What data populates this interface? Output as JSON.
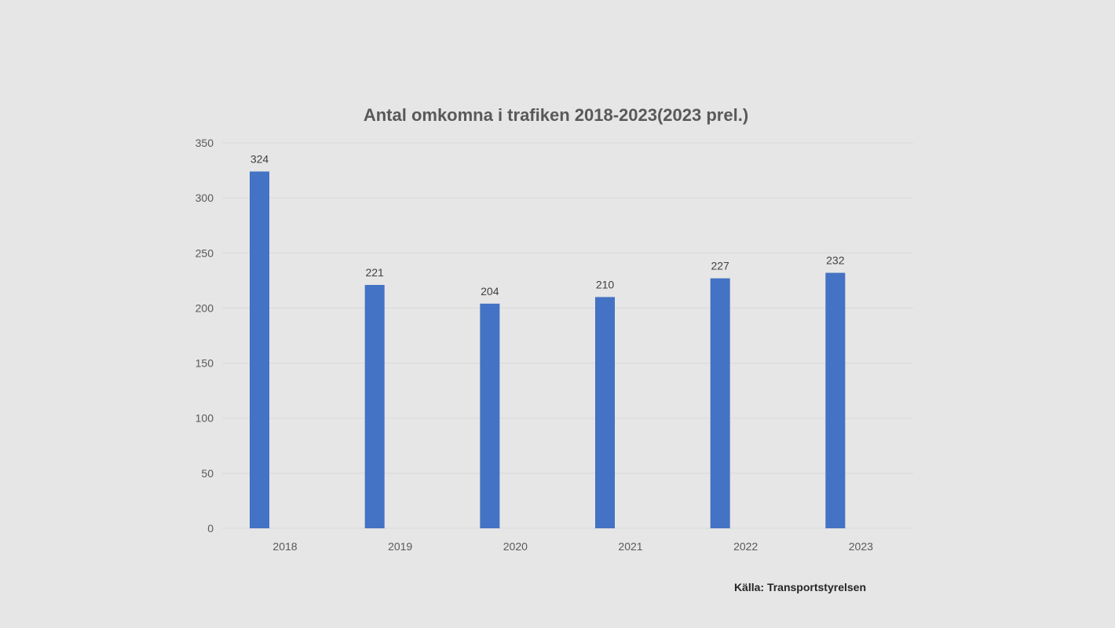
{
  "chart_data": {
    "type": "bar",
    "title": "Antal omkomna  i trafiken 2018-2023(2023 prel.)",
    "xlabel": "",
    "ylabel": "",
    "categories": [
      "2018",
      "2019",
      "2020",
      "2021",
      "2022",
      "2023"
    ],
    "values": [
      324,
      221,
      204,
      210,
      227,
      232
    ],
    "data_labels": [
      "324",
      "221",
      "204",
      "210",
      "227",
      "232"
    ],
    "ylim": [
      0,
      350
    ],
    "yticks": [
      "0",
      "50",
      "100",
      "150",
      "200",
      "250",
      "300",
      "350"
    ],
    "ytick_values": [
      0,
      50,
      100,
      150,
      200,
      250,
      300,
      350
    ],
    "grid": true,
    "legend": "none",
    "bar_color": "#4472c4",
    "source": "Källa: Transportstyrelsen"
  }
}
